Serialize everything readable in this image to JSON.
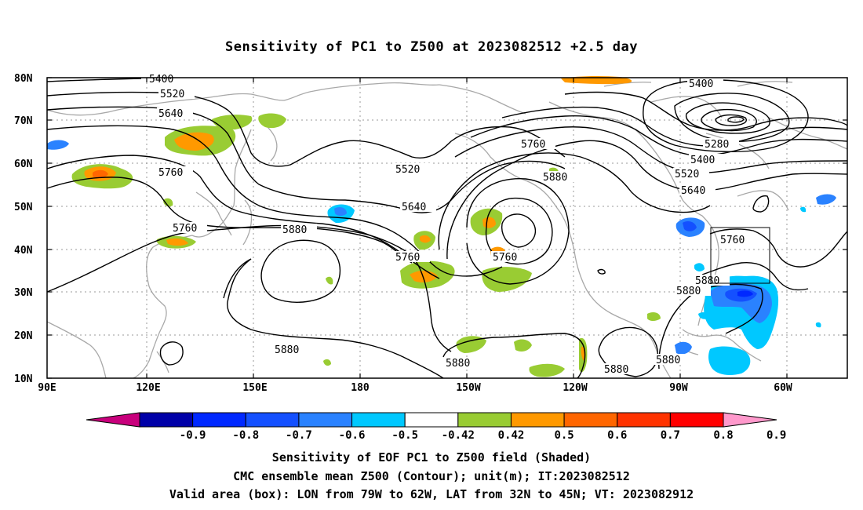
{
  "title": "Sensitivity of PC1 to Z500 at 2023082512 +2.5 day",
  "lat_labels": [
    "80N",
    "70N",
    "60N",
    "50N",
    "40N",
    "30N",
    "20N",
    "10N"
  ],
  "lon_labels": [
    "90E",
    "120E",
    "150E",
    "180",
    "150W",
    "120W",
    "90W",
    "60W"
  ],
  "contour_labels": [
    "5400",
    "5520",
    "5640",
    "5760",
    "5880",
    "5280"
  ],
  "colorbar": {
    "labels": [
      "-0.9",
      "-0.8",
      "-0.7",
      "-0.6",
      "-0.5",
      "-0.42",
      "0.42",
      "0.5",
      "0.6",
      "0.7",
      "0.8",
      "0.9"
    ],
    "colors": [
      "#c8007c",
      "#0000a8",
      "#0028ff",
      "#1450ff",
      "#2a82ff",
      "#00c8ff",
      "#ffffff",
      "#99cc33",
      "#ff9900",
      "#ff6600",
      "#ff3300",
      "#ff0000",
      "#ff99cc"
    ]
  },
  "footer": {
    "line1": "Sensitivity of EOF PC1 to Z500 field (Shaded)",
    "line2": "CMC ensemble mean Z500 (Contour); unit(m); IT:2023082512",
    "line3": "Valid area (box): LON from 79W to 62W, LAT from 32N to 45N; VT: 2023082912"
  },
  "valid_box": {
    "lon_min": -79,
    "lon_max": -62,
    "lat_min": 32,
    "lat_max": 45
  }
}
